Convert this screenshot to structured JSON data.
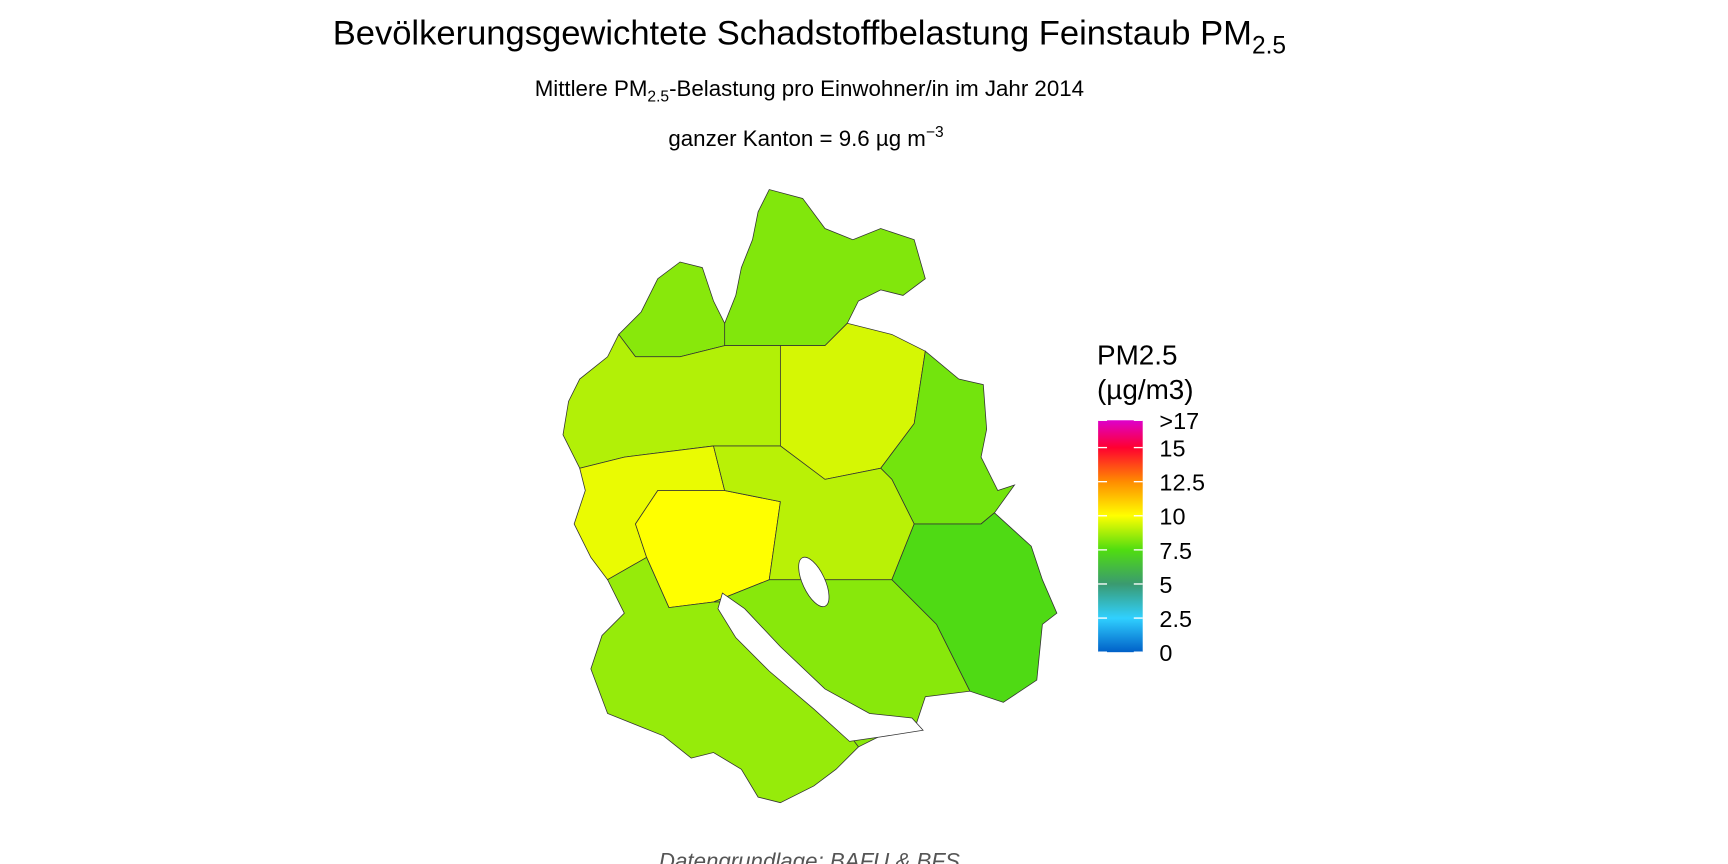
{
  "chart_data": {
    "type": "choropleth",
    "title": "Bevölkerungsgewichtete Schadstoffbelastung Feinstaub PM",
    "title_subscript": "2.5",
    "subtitle": [
      "Mittlere PM",
      "2.5",
      "-Belastung pro Einwohner/in im Jahr 2014"
    ],
    "annotation": [
      "ganzer Kanton = 9.6 µg m",
      "−3"
    ],
    "legend_title": [
      "PM2.5",
      "(µg/m3)"
    ],
    "legend_ticks": [
      0,
      2.5,
      5,
      7.5,
      10,
      12.5,
      15,
      {
        "value": 17,
        "label": ">17"
      }
    ],
    "legend_colors": [
      "#0060c8",
      "#30d0ff",
      "#3a9a70",
      "#50dd10",
      "#ffff00",
      "#ff8c00",
      "#ff0030",
      "#dd00cc"
    ],
    "legend_lim": [
      0,
      17
    ],
    "values": [
      8.2,
      8.3,
      8.9,
      9.4,
      8.0,
      9.7,
      10.0,
      9.0,
      7.4,
      8.3,
      8.5
    ],
    "caption": "Datengrundlage: BAFU & BFS"
  }
}
